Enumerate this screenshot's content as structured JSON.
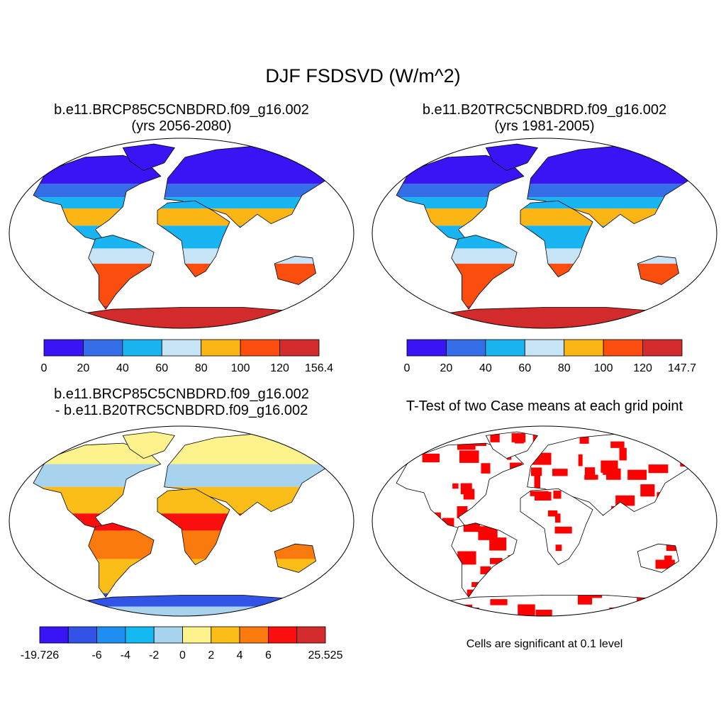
{
  "main_title": "DJF FSDSVD (W/m^2)",
  "panels": [
    {
      "title_line1": "b.e11.BRCP85C5CNBDRD.f09_g16.002",
      "title_line2": "(yrs 2056-2080)",
      "colorbar": {
        "colors": [
          "#3a14f5",
          "#356ee6",
          "#19b4f2",
          "#c6e4f5",
          "#fbb514",
          "#fb4d0e",
          "#d32b2b"
        ],
        "labels": [
          "0",
          "20",
          "40",
          "60",
          "80",
          "100",
          "120",
          "156.4"
        ]
      }
    },
    {
      "title_line1": "b.e11.B20TRC5CNBDRD.f09_g16.002",
      "title_line2": "(yrs 1981-2005)",
      "colorbar": {
        "colors": [
          "#3a14f5",
          "#356ee6",
          "#19b4f2",
          "#c6e4f5",
          "#fbb514",
          "#fb4d0e",
          "#d32b2b"
        ],
        "labels": [
          "0",
          "20",
          "40",
          "60",
          "80",
          "100",
          "120",
          "147.7"
        ]
      }
    },
    {
      "title_line1": "b.e11.BRCP85C5CNBDRD.f09_g16.002",
      "title_line2": "- b.e11.B20TRC5CNBDRD.f09_g16.002",
      "colorbar": {
        "colors": [
          "#3a14f5",
          "#3154e6",
          "#1e8ef0",
          "#14b9f2",
          "#a7d3ee",
          "#fdf28c",
          "#fbbd17",
          "#fb7a0e",
          "#fb0e0e",
          "#d32b2b"
        ],
        "labels": [
          "-19.726",
          "",
          "-6",
          "-4",
          "-2",
          "0",
          "2",
          "4",
          "6",
          "",
          "25.525"
        ]
      }
    },
    {
      "title_line1": "T-Test of two Case means at each grid point",
      "footnote": "Cells are significant at 0.1 level",
      "significant_color": "#ff0000"
    }
  ]
}
